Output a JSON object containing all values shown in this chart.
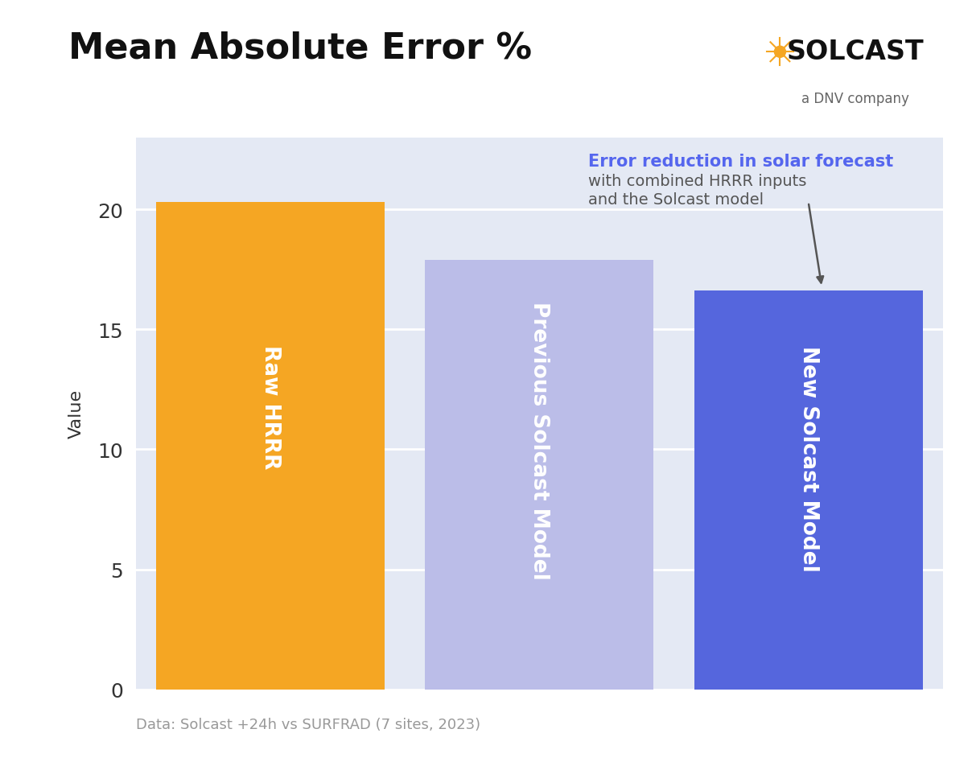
{
  "title": "Mean Absolute Error %",
  "ylabel": "Value",
  "footnote": "Data: Solcast +24h vs SURFRAD (7 sites, 2023)",
  "categories": [
    "Raw HRRR",
    "Previous Solcast Model",
    "New Solcast Model"
  ],
  "values": [
    20.3,
    17.9,
    16.6
  ],
  "bar_colors": [
    "#F5A623",
    "#BBBDE8",
    "#5566DD"
  ],
  "background_color": "#FFFFFF",
  "plot_bg_color": "#E4E9F4",
  "grid_color": "#FFFFFF",
  "ylim": [
    0,
    23.0
  ],
  "yticks": [
    0,
    5,
    10,
    15,
    20
  ],
  "annotation_line1_color": "#5566EE",
  "annotation_line1": "Error reduction in solar forecast",
  "annotation_line2": "with combined HRRR inputs",
  "annotation_line3": "and the Solcast model",
  "annotation_text_color": "#555555",
  "title_fontsize": 32,
  "ylabel_fontsize": 16,
  "bar_label_fontsize": 19,
  "tick_fontsize": 18,
  "footnote_fontsize": 13,
  "solcast_text": "SOLCAST",
  "solcast_sub": "a DNV company"
}
